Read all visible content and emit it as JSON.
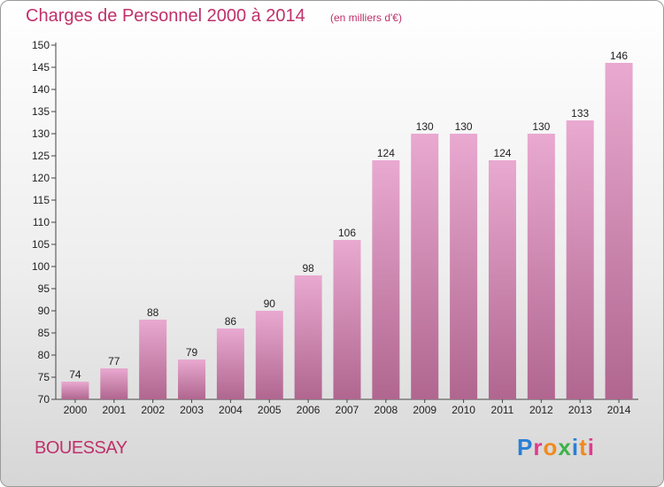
{
  "header": {
    "title": "Charges de Personnel 2000 à 2014",
    "subtitle": "(en milliers d'€)"
  },
  "footer": {
    "commune": "BOUESSAY",
    "logo_text": "Proxiti"
  },
  "colors": {
    "title": "#c0306a",
    "bar_top": "#e9a9d0",
    "bar_bottom": "#b0668f"
  },
  "chart_data": {
    "type": "bar",
    "title": "Charges de Personnel 2000 à 2014",
    "subtitle": "(en milliers d'€)",
    "categories": [
      "2000",
      "2001",
      "2002",
      "2003",
      "2004",
      "2005",
      "2006",
      "2007",
      "2008",
      "2009",
      "2010",
      "2011",
      "2012",
      "2013",
      "2014"
    ],
    "values": [
      74,
      77,
      88,
      79,
      86,
      90,
      98,
      106,
      124,
      130,
      130,
      124,
      130,
      133,
      146
    ],
    "ylim": [
      70,
      150
    ],
    "yticks": [
      70,
      75,
      80,
      85,
      90,
      95,
      100,
      105,
      110,
      115,
      120,
      125,
      130,
      135,
      140,
      145,
      150
    ],
    "grid": false,
    "legend": "none"
  }
}
